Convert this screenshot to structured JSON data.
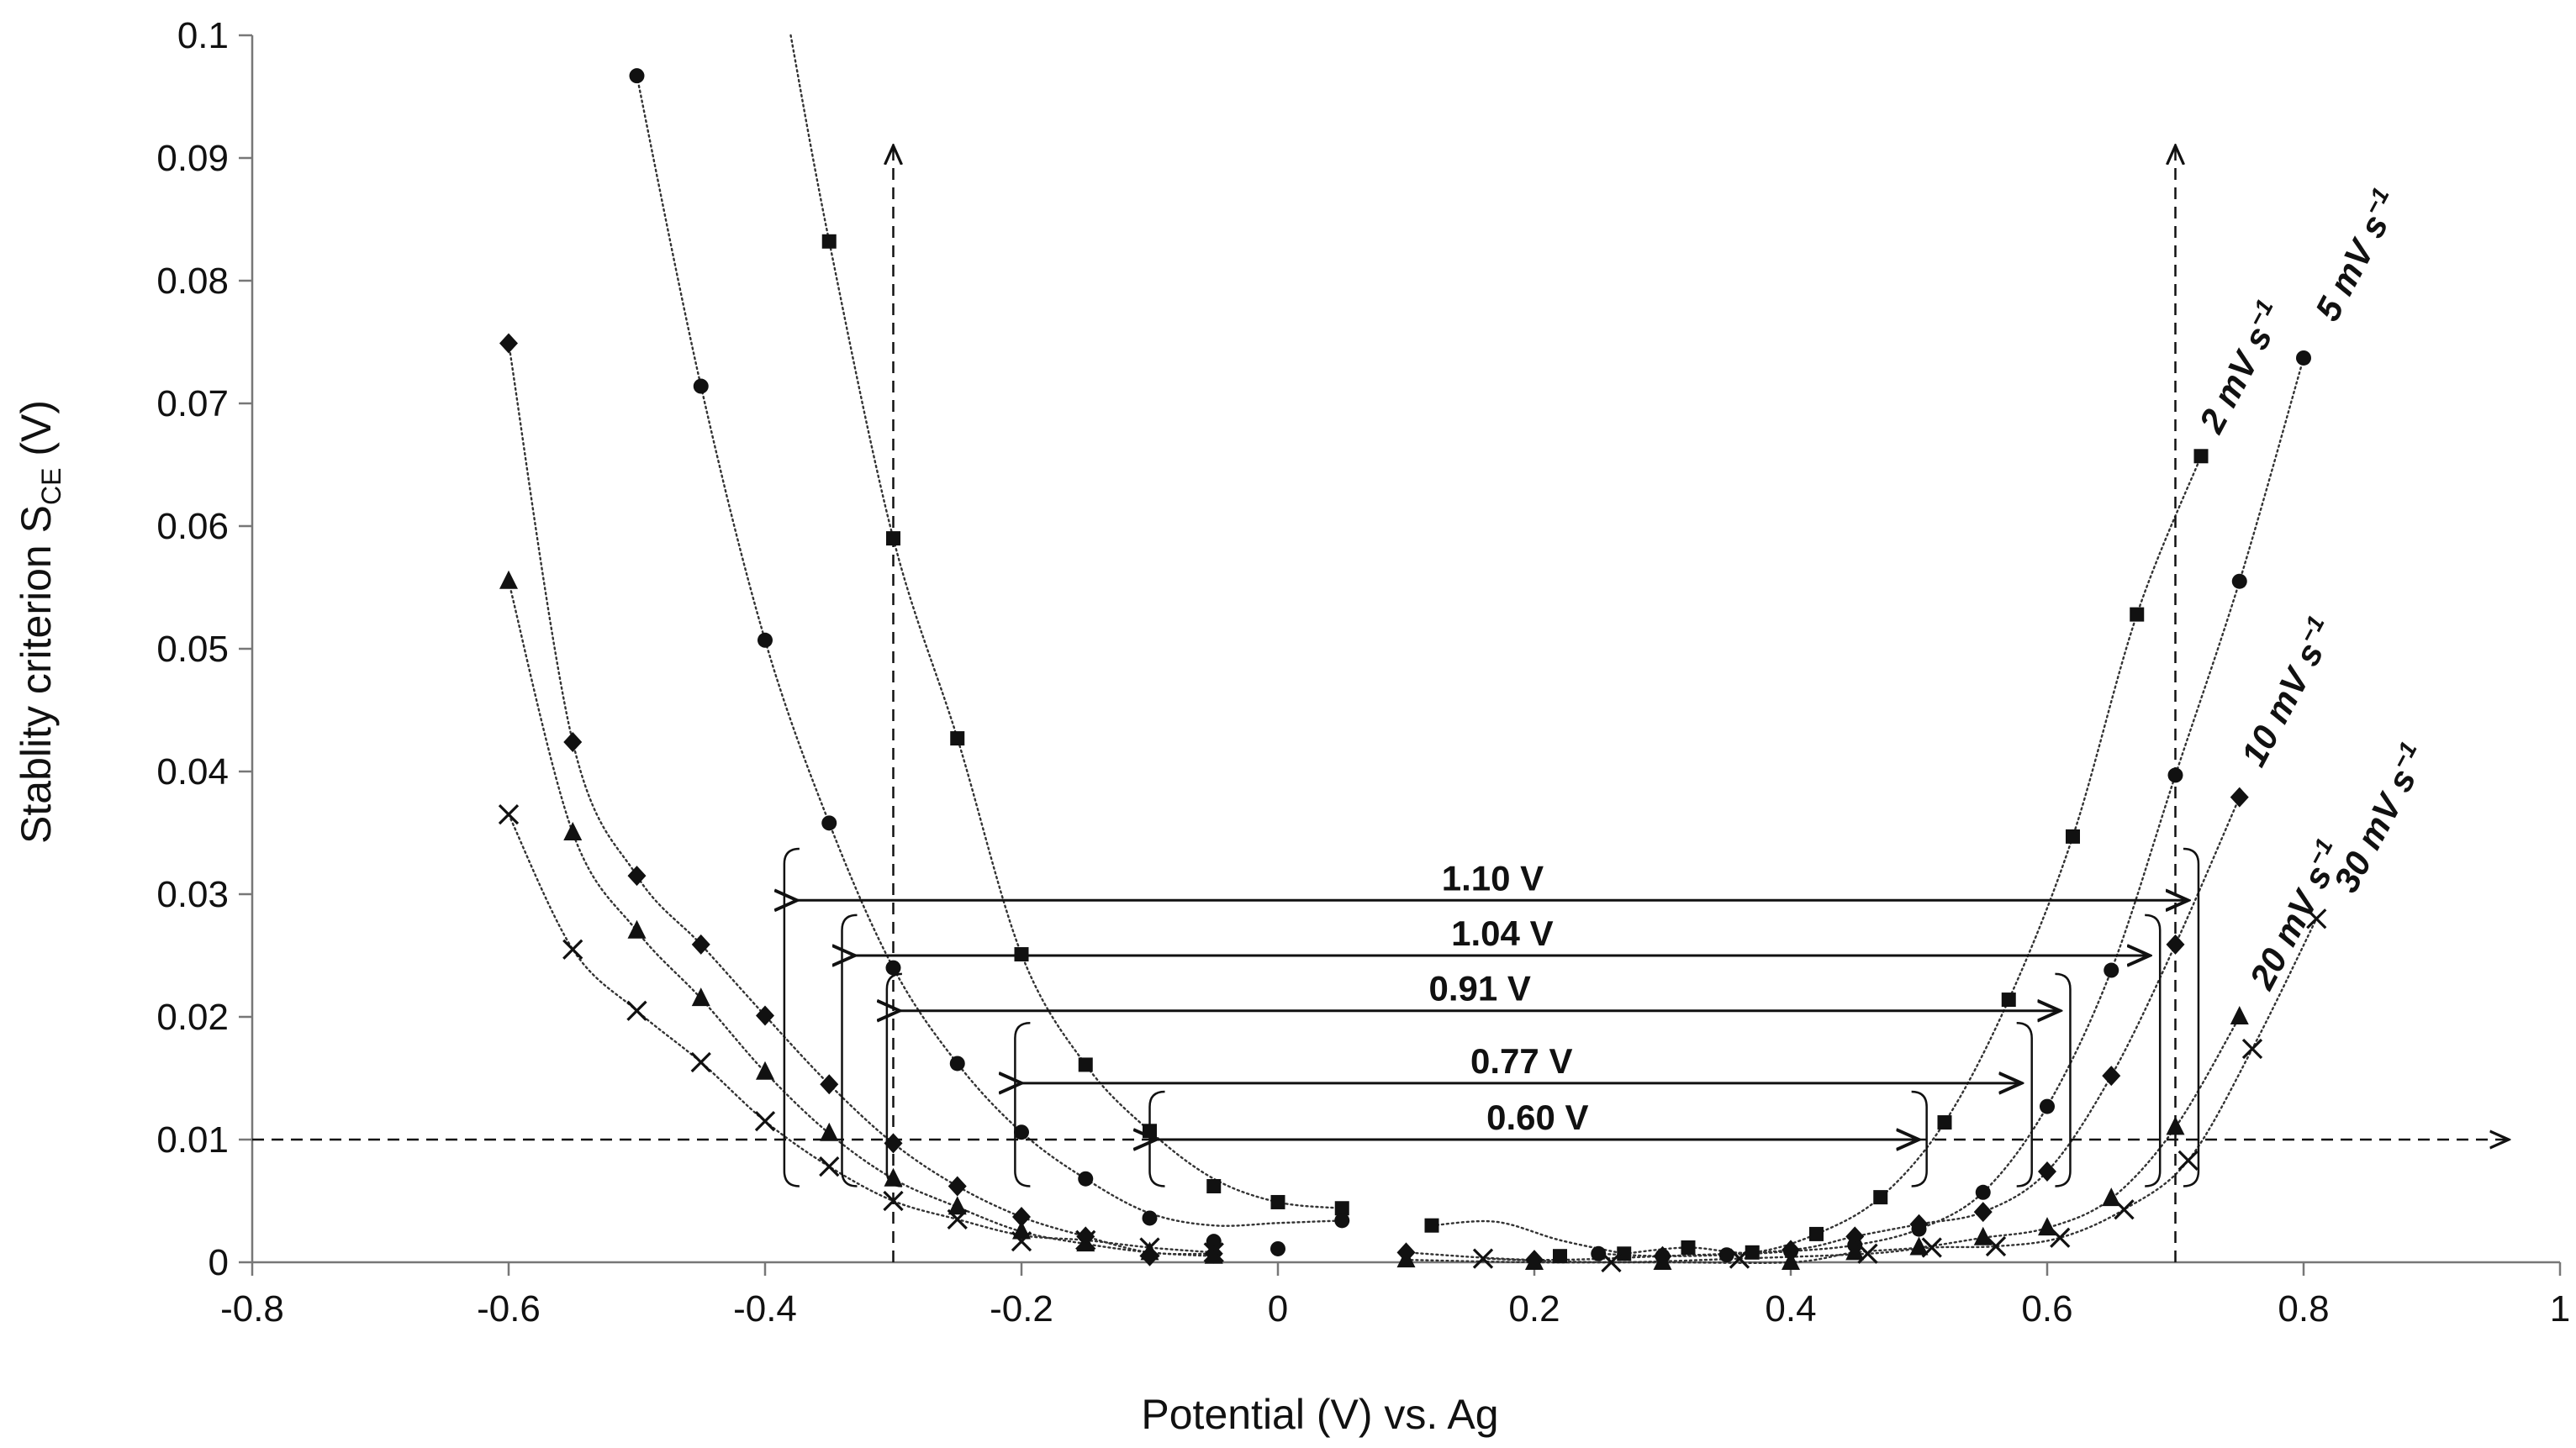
{
  "chart_data": {
    "type": "scatter",
    "title": "",
    "xlabel": "Potential (V) vs. Ag",
    "ylabel_main": "Stablity criterion S",
    "ylabel_sub": "CE",
    "ylabel_unit": " (V)",
    "xlim": [
      -0.8,
      1.0
    ],
    "ylim": [
      0,
      0.1
    ],
    "grid": false,
    "x_ticks": [
      -0.8,
      -0.6,
      -0.4,
      -0.2,
      0,
      0.2,
      0.4,
      0.6,
      0.8,
      1
    ],
    "x_tick_labels": [
      "-0.8",
      "-0.6",
      "-0.4",
      "-0.2",
      "0",
      "0.2",
      "0.4",
      "0.6",
      "0.8",
      "1"
    ],
    "y_ticks": [
      0,
      0.01,
      0.02,
      0.03,
      0.04,
      0.05,
      0.06,
      0.07,
      0.08,
      0.09,
      0.1
    ],
    "y_tick_labels": [
      "0",
      "0.01",
      "0.02",
      "0.03",
      "0.04",
      "0.05",
      "0.06",
      "0.07",
      "0.08",
      "0.09",
      "0.1"
    ],
    "series": [
      {
        "name": "2 mV s-1",
        "label_main": "2 mV s",
        "label_sup": "−1",
        "marker": "square",
        "points": [
          [
            -0.35,
            0.0832
          ],
          [
            -0.3,
            0.059
          ],
          [
            -0.25,
            0.0427
          ],
          [
            -0.2,
            0.0251
          ],
          [
            -0.15,
            0.0161
          ],
          [
            -0.1,
            0.0107
          ],
          [
            -0.05,
            0.0062
          ],
          [
            0.0,
            0.0049
          ],
          [
            0.05,
            0.0044
          ],
          [
            0.12,
            0.003
          ],
          [
            0.22,
            0.0005
          ],
          [
            0.27,
            0.0007
          ],
          [
            0.32,
            0.0012
          ],
          [
            0.37,
            0.0008
          ],
          [
            0.42,
            0.0023
          ],
          [
            0.47,
            0.0053
          ],
          [
            0.52,
            0.0114
          ],
          [
            0.57,
            0.0214
          ],
          [
            0.62,
            0.0347
          ],
          [
            0.67,
            0.0528
          ],
          [
            0.72,
            0.0657
          ]
        ],
        "curve_left": [
          [
            -0.38,
            0.1
          ],
          [
            -0.35,
            0.0832
          ],
          [
            -0.3,
            0.059
          ],
          [
            -0.25,
            0.0427
          ],
          [
            -0.2,
            0.0251
          ],
          [
            -0.15,
            0.0161
          ],
          [
            -0.1,
            0.0107
          ],
          [
            -0.05,
            0.0068
          ],
          [
            0.0,
            0.0049
          ],
          [
            0.05,
            0.0044
          ]
        ],
        "curve_mid": [
          [
            0.12,
            0.003
          ],
          [
            0.17,
            0.0033
          ],
          [
            0.22,
            0.0018
          ],
          [
            0.27,
            0.0007
          ]
        ],
        "curve_right": [
          [
            0.27,
            0.0007
          ],
          [
            0.32,
            0.0012
          ],
          [
            0.37,
            0.0008
          ],
          [
            0.42,
            0.0023
          ],
          [
            0.47,
            0.0053
          ],
          [
            0.52,
            0.0114
          ],
          [
            0.57,
            0.0214
          ],
          [
            0.62,
            0.0347
          ],
          [
            0.67,
            0.0528
          ],
          [
            0.72,
            0.0657
          ]
        ]
      },
      {
        "name": "5 mV s-1",
        "label_main": "5 mV s",
        "label_sup": "−1",
        "marker": "circle",
        "points": [
          [
            -0.5,
            0.0967
          ],
          [
            -0.45,
            0.0714
          ],
          [
            -0.4,
            0.0507
          ],
          [
            -0.35,
            0.0358
          ],
          [
            -0.3,
            0.024
          ],
          [
            -0.25,
            0.0162
          ],
          [
            -0.2,
            0.0106
          ],
          [
            -0.15,
            0.0068
          ],
          [
            -0.1,
            0.0036
          ],
          [
            -0.05,
            0.0017
          ],
          [
            0.0,
            0.0011
          ],
          [
            0.05,
            0.0034
          ],
          [
            0.25,
            0.0007
          ],
          [
            0.3,
            0.0005
          ],
          [
            0.35,
            0.0006
          ],
          [
            0.4,
            0.0009
          ],
          [
            0.45,
            0.0014
          ],
          [
            0.5,
            0.0027
          ],
          [
            0.55,
            0.0057
          ],
          [
            0.6,
            0.0127
          ],
          [
            0.65,
            0.0238
          ],
          [
            0.7,
            0.0397
          ],
          [
            0.75,
            0.0555
          ],
          [
            0.8,
            0.0737
          ]
        ],
        "curve_left": [
          [
            -0.5,
            0.0967
          ],
          [
            -0.45,
            0.0714
          ],
          [
            -0.4,
            0.0507
          ],
          [
            -0.35,
            0.0358
          ],
          [
            -0.3,
            0.024
          ],
          [
            -0.25,
            0.0162
          ],
          [
            -0.2,
            0.0106
          ],
          [
            -0.15,
            0.0068
          ],
          [
            -0.1,
            0.004
          ],
          [
            -0.05,
            0.003
          ],
          [
            0.0,
            0.0032
          ],
          [
            0.05,
            0.0034
          ]
        ],
        "curve_right": [
          [
            0.25,
            0.0007
          ],
          [
            0.3,
            0.0005
          ],
          [
            0.35,
            0.0006
          ],
          [
            0.4,
            0.0009
          ],
          [
            0.45,
            0.0014
          ],
          [
            0.5,
            0.0027
          ],
          [
            0.55,
            0.0057
          ],
          [
            0.6,
            0.0127
          ],
          [
            0.65,
            0.0238
          ],
          [
            0.7,
            0.0397
          ],
          [
            0.75,
            0.0555
          ],
          [
            0.8,
            0.0737
          ]
        ]
      },
      {
        "name": "10 mV s-1",
        "label_main": "10 mV s",
        "label_sup": "−1",
        "marker": "diamond",
        "points": [
          [
            -0.6,
            0.0749
          ],
          [
            -0.55,
            0.0424
          ],
          [
            -0.5,
            0.0315
          ],
          [
            -0.45,
            0.0259
          ],
          [
            -0.4,
            0.0201
          ],
          [
            -0.35,
            0.0145
          ],
          [
            -0.3,
            0.0097
          ],
          [
            -0.25,
            0.0062
          ],
          [
            -0.2,
            0.0037
          ],
          [
            -0.15,
            0.0021
          ],
          [
            -0.1,
            0.0005
          ],
          [
            -0.05,
            0.0007
          ],
          [
            0.1,
            0.0008
          ],
          [
            0.2,
            0.0002
          ],
          [
            0.3,
            0.0005
          ],
          [
            0.4,
            0.001
          ],
          [
            0.45,
            0.0021
          ],
          [
            0.5,
            0.0031
          ],
          [
            0.55,
            0.0041
          ],
          [
            0.6,
            0.0074
          ],
          [
            0.65,
            0.0152
          ],
          [
            0.7,
            0.0259
          ],
          [
            0.75,
            0.0379
          ]
        ],
        "curve_left": [
          [
            -0.6,
            0.0749
          ],
          [
            -0.55,
            0.0424
          ],
          [
            -0.5,
            0.0315
          ],
          [
            -0.45,
            0.0259
          ],
          [
            -0.4,
            0.0201
          ],
          [
            -0.35,
            0.0145
          ],
          [
            -0.3,
            0.0097
          ],
          [
            -0.25,
            0.0062
          ],
          [
            -0.2,
            0.0037
          ],
          [
            -0.15,
            0.0021
          ],
          [
            -0.1,
            0.0008
          ],
          [
            -0.05,
            0.0007
          ]
        ],
        "curve_right": [
          [
            0.1,
            0.0008
          ],
          [
            0.2,
            0.0002
          ],
          [
            0.3,
            0.0005
          ],
          [
            0.4,
            0.001
          ],
          [
            0.45,
            0.0021
          ],
          [
            0.5,
            0.0031
          ],
          [
            0.55,
            0.0041
          ],
          [
            0.6,
            0.0074
          ],
          [
            0.65,
            0.0152
          ],
          [
            0.7,
            0.0259
          ],
          [
            0.75,
            0.0379
          ]
        ]
      },
      {
        "name": "20 mV s-1",
        "label_main": "20 mV s",
        "label_sup": "−1",
        "marker": "triangle",
        "points": [
          [
            -0.6,
            0.0555
          ],
          [
            -0.55,
            0.035
          ],
          [
            -0.5,
            0.027
          ],
          [
            -0.45,
            0.0215
          ],
          [
            -0.4,
            0.0155
          ],
          [
            -0.35,
            0.0105
          ],
          [
            -0.3,
            0.0068
          ],
          [
            -0.25,
            0.0045
          ],
          [
            -0.2,
            0.0025
          ],
          [
            -0.15,
            0.0015
          ],
          [
            -0.1,
            0.0008
          ],
          [
            -0.05,
            0.0005
          ],
          [
            0.1,
            0.0002
          ],
          [
            0.2,
            0.0
          ],
          [
            0.3,
            0.0
          ],
          [
            0.4,
            0.0
          ],
          [
            0.45,
            0.0008
          ],
          [
            0.5,
            0.0012
          ],
          [
            0.55,
            0.002
          ],
          [
            0.6,
            0.0028
          ],
          [
            0.65,
            0.0052
          ],
          [
            0.7,
            0.011
          ],
          [
            0.75,
            0.02
          ]
        ],
        "curve_left": [
          [
            -0.6,
            0.0555
          ],
          [
            -0.55,
            0.035
          ],
          [
            -0.5,
            0.027
          ],
          [
            -0.45,
            0.0215
          ],
          [
            -0.4,
            0.0155
          ],
          [
            -0.35,
            0.0105
          ],
          [
            -0.3,
            0.0068
          ],
          [
            -0.25,
            0.0045
          ],
          [
            -0.2,
            0.0025
          ],
          [
            -0.15,
            0.0015
          ],
          [
            -0.1,
            0.0008
          ],
          [
            -0.05,
            0.0005
          ]
        ],
        "curve_right": [
          [
            0.1,
            0.0002
          ],
          [
            0.2,
            0.0
          ],
          [
            0.3,
            0.0
          ],
          [
            0.4,
            0.0
          ],
          [
            0.45,
            0.0008
          ],
          [
            0.5,
            0.0012
          ],
          [
            0.55,
            0.002
          ],
          [
            0.6,
            0.0028
          ],
          [
            0.65,
            0.0052
          ],
          [
            0.7,
            0.011
          ],
          [
            0.75,
            0.02
          ]
        ]
      },
      {
        "name": "30 mV s-1",
        "label_main": "30 mV s",
        "label_sup": "−1",
        "marker": "cross",
        "points": [
          [
            -0.6,
            0.0365
          ],
          [
            -0.55,
            0.0255
          ],
          [
            -0.5,
            0.0205
          ],
          [
            -0.45,
            0.0163
          ],
          [
            -0.4,
            0.0115
          ],
          [
            -0.35,
            0.0078
          ],
          [
            -0.3,
            0.005
          ],
          [
            -0.25,
            0.0035
          ],
          [
            -0.2,
            0.0017
          ],
          [
            -0.15,
            0.0018
          ],
          [
            -0.1,
            0.0012
          ],
          [
            -0.05,
            0.0008
          ],
          [
            0.16,
            0.0003
          ],
          [
            0.26,
            0.0
          ],
          [
            0.36,
            0.0003
          ],
          [
            0.46,
            0.0007
          ],
          [
            0.51,
            0.0012
          ],
          [
            0.56,
            0.0013
          ],
          [
            0.61,
            0.002
          ],
          [
            0.66,
            0.0043
          ],
          [
            0.71,
            0.0083
          ],
          [
            0.76,
            0.0174
          ],
          [
            0.81,
            0.028
          ]
        ],
        "curve_left": [
          [
            -0.6,
            0.0365
          ],
          [
            -0.55,
            0.0255
          ],
          [
            -0.5,
            0.0205
          ],
          [
            -0.45,
            0.0163
          ],
          [
            -0.4,
            0.0115
          ],
          [
            -0.35,
            0.0078
          ],
          [
            -0.3,
            0.005
          ],
          [
            -0.25,
            0.0035
          ],
          [
            -0.2,
            0.0022
          ],
          [
            -0.15,
            0.0018
          ],
          [
            -0.1,
            0.0012
          ],
          [
            -0.05,
            0.0008
          ]
        ],
        "curve_right": [
          [
            0.16,
            0.0003
          ],
          [
            0.26,
            0.0
          ],
          [
            0.36,
            0.0003
          ],
          [
            0.46,
            0.0007
          ],
          [
            0.51,
            0.0012
          ],
          [
            0.56,
            0.0013
          ],
          [
            0.61,
            0.002
          ],
          [
            0.66,
            0.0043
          ],
          [
            0.71,
            0.0083
          ],
          [
            0.76,
            0.0174
          ],
          [
            0.81,
            0.028
          ]
        ]
      }
    ],
    "threshold": {
      "y": 0.01,
      "x_end": 0.96
    },
    "vertical_markers": [
      {
        "x": -0.3,
        "y_top": 0.091
      },
      {
        "x": 0.7,
        "y_top": 0.091
      }
    ],
    "windows": [
      {
        "label": "1.10 V",
        "x_start": -0.375,
        "x_end": 0.71,
        "y": 0.0295
      },
      {
        "label": "1.04 V",
        "x_start": -0.33,
        "x_end": 0.68,
        "y": 0.025
      },
      {
        "label": "0.91 V",
        "x_start": -0.295,
        "x_end": 0.61,
        "y": 0.0205
      },
      {
        "label": "0.77 V",
        "x_start": -0.2,
        "x_end": 0.58,
        "y": 0.0146
      },
      {
        "label": "0.60 V",
        "x_start": -0.095,
        "x_end": 0.5,
        "y": 0.01
      }
    ],
    "brackets": [
      {
        "x": -0.385,
        "y_bot": 0.0062,
        "y_top": 0.0337,
        "side": "left"
      },
      {
        "x": -0.34,
        "y_bot": 0.0062,
        "y_top": 0.0283,
        "side": "left"
      },
      {
        "x": -0.305,
        "y_bot": 0.0062,
        "y_top": 0.0235,
        "side": "left"
      },
      {
        "x": -0.205,
        "y_bot": 0.0062,
        "y_top": 0.0195,
        "side": "left"
      },
      {
        "x": -0.1,
        "y_bot": 0.0062,
        "y_top": 0.0139,
        "side": "left"
      },
      {
        "x": 0.718,
        "y_bot": 0.0062,
        "y_top": 0.0337,
        "side": "right"
      },
      {
        "x": 0.688,
        "y_bot": 0.0062,
        "y_top": 0.0283,
        "side": "right"
      },
      {
        "x": 0.618,
        "y_bot": 0.0062,
        "y_top": 0.0235,
        "side": "right"
      },
      {
        "x": 0.588,
        "y_bot": 0.0062,
        "y_top": 0.0195,
        "side": "right"
      },
      {
        "x": 0.506,
        "y_bot": 0.0062,
        "y_top": 0.0139,
        "side": "right"
      }
    ]
  }
}
